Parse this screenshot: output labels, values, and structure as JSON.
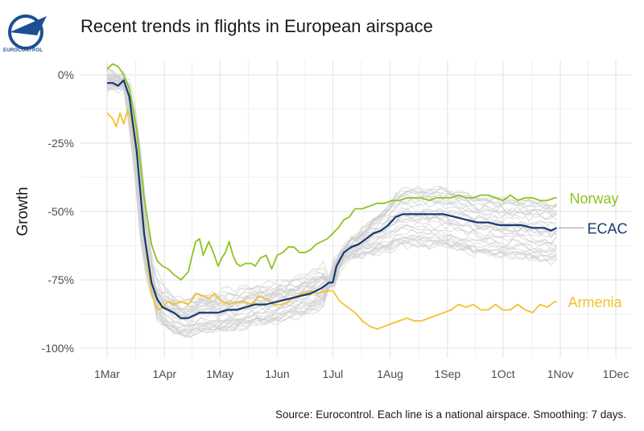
{
  "brand": {
    "logo_label": "EUROCONTROL"
  },
  "colors": {
    "norway": "#8fc31f",
    "ecac": "#163a70",
    "armenia": "#f2c12e",
    "others": "#cfcfcf",
    "grid": "#e6e6e6",
    "logo": "#1d4f91"
  },
  "chart_data": {
    "type": "line",
    "title": "Recent trends in flights in European airspace",
    "ylabel": "Growth",
    "xlabel": "",
    "caption": "Source: Eurocontrol. Each line is a national airspace. Smoothing: 7 days.",
    "ylim": [
      -100,
      0
    ],
    "xlim_days": [
      0,
      275
    ],
    "y_ticks": [
      {
        "value": 0,
        "label": "0%"
      },
      {
        "value": -25,
        "label": "-25%"
      },
      {
        "value": -50,
        "label": "-50%"
      },
      {
        "value": -75,
        "label": "-75%"
      },
      {
        "value": -100,
        "label": "-100%"
      }
    ],
    "x_ticks": [
      {
        "day": 0,
        "label": "1Mar"
      },
      {
        "day": 31,
        "label": "1Apr"
      },
      {
        "day": 61,
        "label": "1May"
      },
      {
        "day": 92,
        "label": "1Jun"
      },
      {
        "day": 122,
        "label": "1Jul"
      },
      {
        "day": 153,
        "label": "1Aug"
      },
      {
        "day": 184,
        "label": "1Sep"
      },
      {
        "day": 214,
        "label": "1Oct"
      },
      {
        "day": 245,
        "label": "1Nov"
      },
      {
        "day": 275,
        "label": "1Dec"
      }
    ],
    "series": [
      {
        "name": "Norway",
        "color_key": "norway",
        "label": "Norway",
        "x": [
          0,
          3,
          6,
          9,
          12,
          16,
          20,
          24,
          27,
          30,
          33,
          36,
          40,
          44,
          46,
          48,
          50,
          52,
          55,
          58,
          60,
          62,
          64,
          66,
          68,
          70,
          72,
          75,
          78,
          80,
          83,
          86,
          89,
          92,
          95,
          98,
          101,
          104,
          107,
          110,
          113,
          116,
          119,
          122,
          125,
          128,
          131,
          134,
          138,
          142,
          146,
          150,
          154,
          158,
          162,
          166,
          170,
          174,
          178,
          182,
          186,
          190,
          194,
          198,
          202,
          206,
          210,
          214,
          218,
          222,
          226,
          230,
          234,
          238,
          242,
          243
        ],
        "values": [
          2,
          4,
          3,
          0,
          -5,
          -20,
          -45,
          -62,
          -68,
          -70,
          -71,
          -73,
          -75,
          -72,
          -66,
          -61,
          -60,
          -66,
          -61,
          -66,
          -70,
          -67,
          -65,
          -61,
          -66,
          -69,
          -70,
          -69,
          -69,
          -70,
          -67,
          -66,
          -71,
          -66,
          -65,
          -63,
          -63,
          -65,
          -65,
          -64,
          -62,
          -61,
          -60,
          -58,
          -56,
          -53,
          -52,
          -49,
          -49,
          -48,
          -47,
          -47,
          -46,
          -46,
          -45,
          -45,
          -45,
          -46,
          -45,
          -45,
          -45,
          -44,
          -45,
          -45,
          -44,
          -44,
          -45,
          -46,
          -44,
          -46,
          -45,
          -45,
          -46,
          -46,
          -45,
          -45
        ]
      },
      {
        "name": "ECAC",
        "color_key": "ecac",
        "label": "ECAC",
        "x": [
          0,
          3,
          6,
          9,
          12,
          16,
          20,
          24,
          27,
          30,
          33,
          36,
          40,
          44,
          50,
          56,
          60,
          65,
          70,
          75,
          80,
          86,
          92,
          98,
          104,
          110,
          116,
          120,
          122,
          124,
          128,
          132,
          136,
          140,
          144,
          148,
          152,
          156,
          160,
          165,
          170,
          176,
          182,
          188,
          194,
          200,
          206,
          212,
          218,
          224,
          230,
          236,
          240,
          243
        ],
        "values": [
          -3,
          -3,
          -4,
          -2,
          -8,
          -28,
          -58,
          -76,
          -82,
          -85,
          -86,
          -87,
          -89,
          -89,
          -87,
          -87,
          -87,
          -86,
          -86,
          -85,
          -84,
          -84,
          -83,
          -82,
          -81,
          -80,
          -78,
          -76,
          -76,
          -70,
          -65,
          -63,
          -62,
          -60,
          -58,
          -57,
          -55,
          -52,
          -51,
          -51,
          -51,
          -51,
          -51,
          -52,
          -53,
          -54,
          -54,
          -55,
          -55,
          -55,
          -56,
          -56,
          -57,
          -56
        ]
      },
      {
        "name": "Armenia",
        "color_key": "armenia",
        "label": "Armenia",
        "x": [
          0,
          3,
          5,
          7,
          9,
          11,
          13,
          16,
          19,
          22,
          24,
          26,
          28,
          30,
          33,
          36,
          40,
          44,
          48,
          52,
          55,
          58,
          62,
          66,
          70,
          74,
          78,
          82,
          86,
          90,
          94,
          98,
          102,
          106,
          110,
          114,
          118,
          122,
          126,
          130,
          134,
          138,
          142,
          146,
          150,
          154,
          158,
          162,
          166,
          170,
          174,
          178,
          182,
          186,
          190,
          194,
          198,
          202,
          206,
          210,
          214,
          218,
          222,
          226,
          230,
          234,
          238,
          242,
          243
        ],
        "values": [
          -14,
          -16,
          -19,
          -14,
          -18,
          -13,
          -16,
          -28,
          -50,
          -70,
          -80,
          -84,
          -86,
          -85,
          -83,
          -84,
          -83,
          -84,
          -80,
          -81,
          -82,
          -80,
          -83,
          -84,
          -83,
          -83,
          -84,
          -81,
          -82,
          -84,
          -84,
          -83,
          -81,
          -80,
          -79,
          -80,
          -79,
          -79,
          -83,
          -85,
          -87,
          -90,
          -92,
          -93,
          -92,
          -91,
          -90,
          -89,
          -90,
          -90,
          -89,
          -88,
          -87,
          -86,
          -84,
          -85,
          -84,
          -86,
          -86,
          -84,
          -86,
          -86,
          -84,
          -86,
          -87,
          -84,
          -85,
          -83,
          -83
        ]
      }
    ],
    "background_series_count": 38
  }
}
